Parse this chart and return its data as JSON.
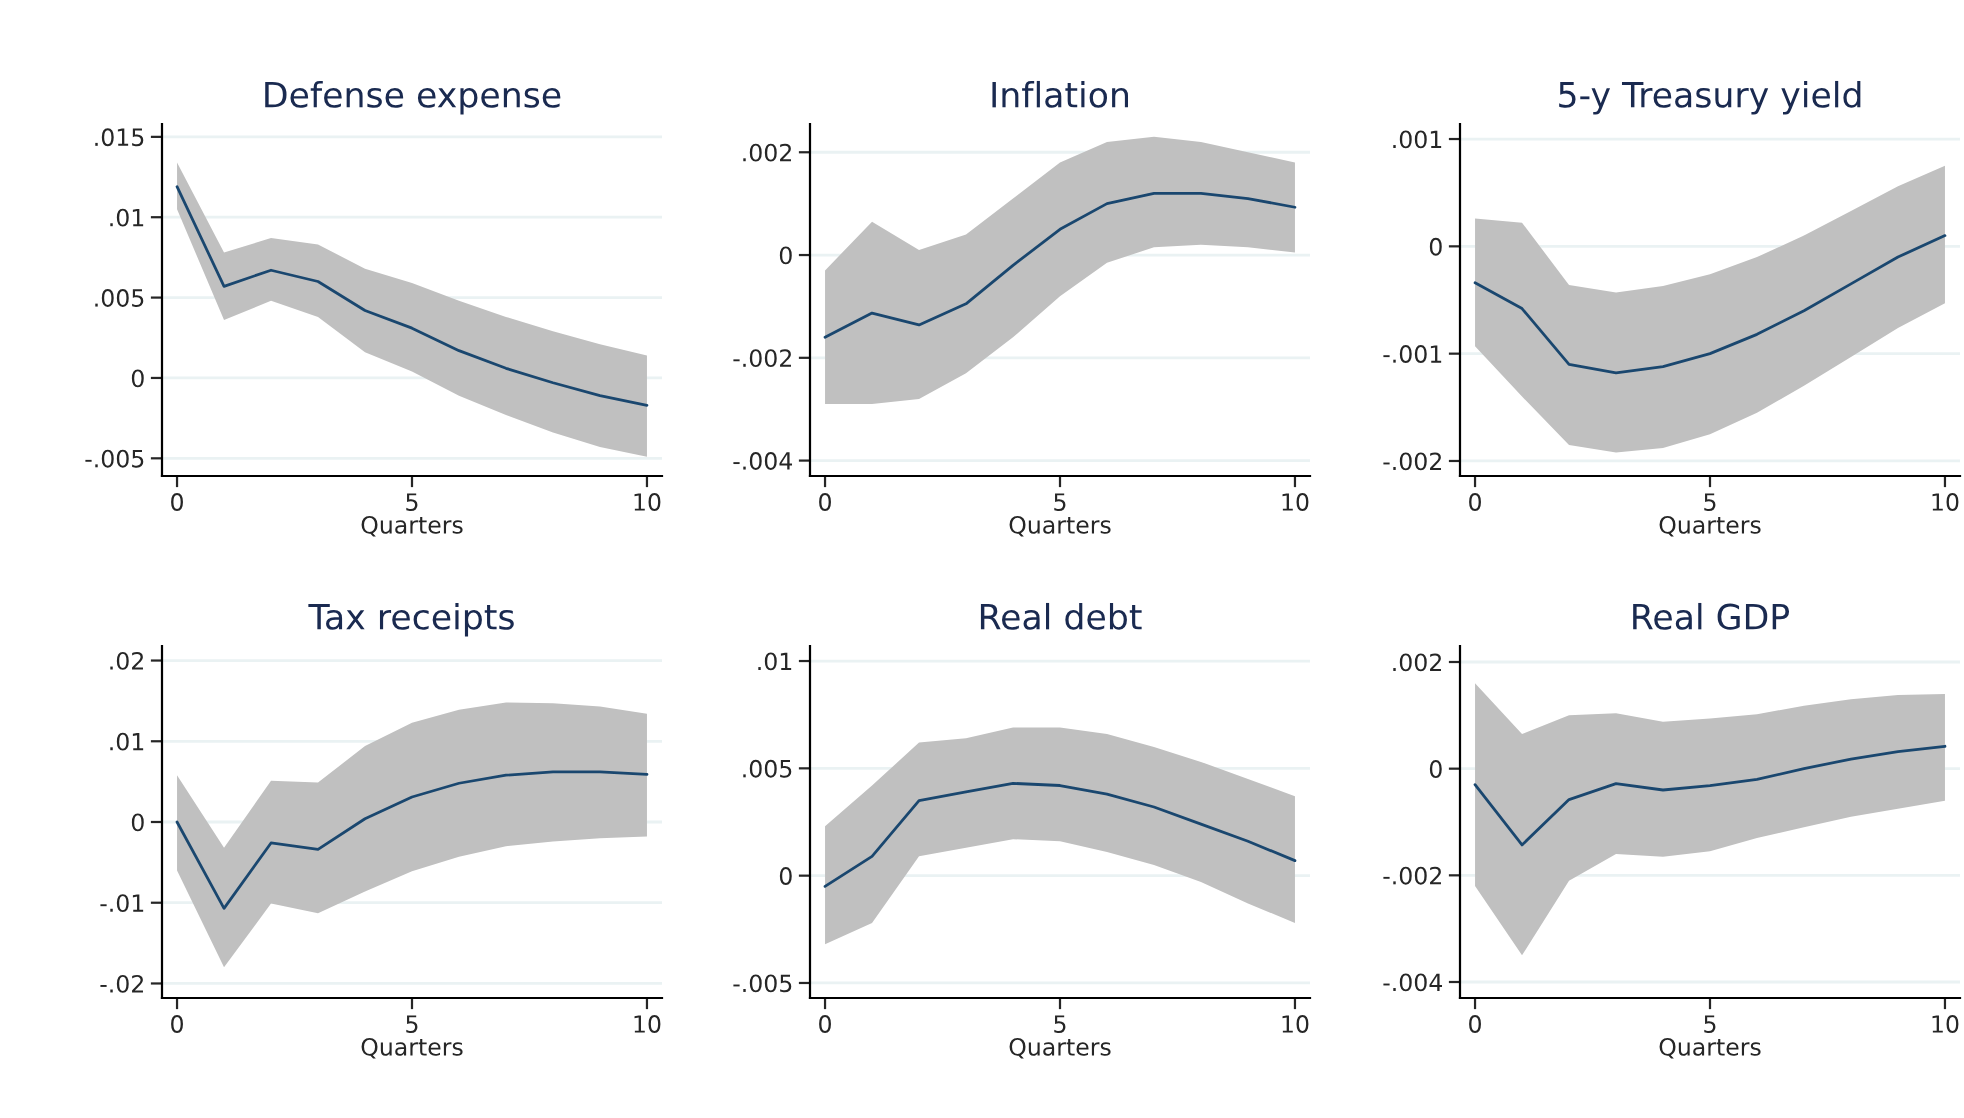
{
  "chart_data": [
    {
      "type": "line",
      "title": "Defense expense",
      "xlabel": "Quarters",
      "x": [
        0,
        1,
        2,
        3,
        4,
        5,
        6,
        7,
        8,
        9,
        10
      ],
      "xlim": [
        -0.32,
        10.32
      ],
      "xticks": [
        0,
        5,
        10
      ],
      "ylim": [
        -0.0061,
        0.0158
      ],
      "yticks": [
        {
          "value": -0.005,
          "label": "-.005"
        },
        0,
        {
          "value": 0.005,
          "label": ".005"
        },
        {
          "value": 0.01,
          "label": ".01"
        },
        {
          "value": 0.015,
          "label": ".015"
        }
      ],
      "grid": "y",
      "series": [
        {
          "color": "#1a476f",
          "values": [
            0.0119,
            0.0057,
            0.0067,
            0.006,
            0.0042,
            0.0031,
            0.0017,
            0.0006,
            -0.0003,
            -0.0011,
            -0.0017
          ],
          "lower": [
            0.0105,
            0.0036,
            0.0048,
            0.0038,
            0.0016,
            0.0004,
            -0.0011,
            -0.0023,
            -0.0034,
            -0.0043,
            -0.0049
          ],
          "upper": [
            0.0134,
            0.0078,
            0.0087,
            0.0083,
            0.0068,
            0.0059,
            0.0048,
            0.0038,
            0.0029,
            0.0021,
            0.0014
          ]
        }
      ]
    },
    {
      "type": "line",
      "title": "Inflation",
      "xlabel": "Quarters",
      "x": [
        0,
        1,
        2,
        3,
        4,
        5,
        6,
        7,
        8,
        9,
        10
      ],
      "xlim": [
        -0.32,
        10.32
      ],
      "xticks": [
        0,
        5,
        10
      ],
      "ylim": [
        -0.0043,
        0.00255
      ],
      "yticks": [
        {
          "value": -0.004,
          "label": "-.004"
        },
        {
          "value": -0.002,
          "label": "-.002"
        },
        0,
        {
          "value": 0.002,
          "label": ".002"
        }
      ],
      "grid": "y",
      "series": [
        {
          "color": "#1a476f",
          "values": [
            -0.0016,
            -0.00113,
            -0.00136,
            -0.00095,
            -0.0002,
            0.0005,
            0.001,
            0.0012,
            0.0012,
            0.0011,
            0.00093
          ],
          "lower": [
            -0.0029,
            -0.0029,
            -0.0028,
            -0.0023,
            -0.0016,
            -0.0008,
            -0.00015,
            0.00015,
            0.0002,
            0.00015,
            5e-05
          ],
          "upper": [
            -0.0003,
            0.00065,
            0.0001,
            0.0004,
            0.0011,
            0.0018,
            0.0022,
            0.0023,
            0.0022,
            0.002,
            0.0018
          ]
        }
      ]
    },
    {
      "type": "line",
      "title": "5-y Treasury yield",
      "xlabel": "Quarters",
      "x": [
        0,
        1,
        2,
        3,
        4,
        5,
        6,
        7,
        8,
        9,
        10
      ],
      "xlim": [
        -0.32,
        10.32
      ],
      "xticks": [
        0,
        5,
        10
      ],
      "ylim": [
        -0.00214,
        0.00114
      ],
      "yticks": [
        {
          "value": -0.002,
          "label": "-.002"
        },
        {
          "value": -0.001,
          "label": "-.001"
        },
        0,
        {
          "value": 0.001,
          "label": ".001"
        }
      ],
      "grid": "y",
      "series": [
        {
          "color": "#1a476f",
          "values": [
            -0.00034,
            -0.00058,
            -0.0011,
            -0.00118,
            -0.00112,
            -0.001,
            -0.00082,
            -0.0006,
            -0.00035,
            -0.0001,
            0.0001
          ],
          "lower": [
            -0.00093,
            -0.0014,
            -0.00185,
            -0.00192,
            -0.00188,
            -0.00175,
            -0.00155,
            -0.0013,
            -0.00103,
            -0.00076,
            -0.00053
          ],
          "upper": [
            0.00026,
            0.00022,
            -0.00036,
            -0.00043,
            -0.00037,
            -0.00026,
            -0.0001,
            0.0001,
            0.00033,
            0.00056,
            0.00075
          ]
        }
      ]
    },
    {
      "type": "line",
      "title": "Tax receipts",
      "xlabel": "Quarters",
      "x": [
        0,
        1,
        2,
        3,
        4,
        5,
        6,
        7,
        8,
        9,
        10
      ],
      "xlim": [
        -0.32,
        10.32
      ],
      "xticks": [
        0,
        5,
        10
      ],
      "ylim": [
        -0.0218,
        0.0218
      ],
      "yticks": [
        {
          "value": -0.02,
          "label": "-.02"
        },
        {
          "value": -0.01,
          "label": "-.01"
        },
        0,
        {
          "value": 0.01,
          "label": ".01"
        },
        {
          "value": 0.02,
          "label": ".02"
        }
      ],
      "grid": "y",
      "series": [
        {
          "color": "#1a476f",
          "values": [
            0,
            -0.0107,
            -0.0026,
            -0.0034,
            0.0004,
            0.0031,
            0.0048,
            0.0058,
            0.0062,
            0.0062,
            0.0059
          ],
          "lower": [
            -0.006,
            -0.018,
            -0.0101,
            -0.0113,
            -0.0086,
            -0.0061,
            -0.0043,
            -0.003,
            -0.0024,
            -0.002,
            -0.0018
          ],
          "upper": [
            0.0058,
            -0.0032,
            0.0051,
            0.0049,
            0.0094,
            0.0123,
            0.0139,
            0.0148,
            0.0147,
            0.0143,
            0.0134
          ]
        }
      ]
    },
    {
      "type": "line",
      "title": "Real debt",
      "xlabel": "Quarters",
      "x": [
        0,
        1,
        2,
        3,
        4,
        5,
        6,
        7,
        8,
        9,
        10
      ],
      "xlim": [
        -0.32,
        10.32
      ],
      "xticks": [
        0,
        5,
        10
      ],
      "ylim": [
        -0.0057,
        0.0107
      ],
      "yticks": [
        {
          "value": -0.005,
          "label": "-.005"
        },
        0,
        {
          "value": 0.005,
          "label": ".005"
        },
        {
          "value": 0.01,
          "label": ".01"
        }
      ],
      "grid": "y",
      "series": [
        {
          "color": "#1a476f",
          "values": [
            -0.0005,
            0.0009,
            0.0035,
            0.0039,
            0.0043,
            0.0042,
            0.0038,
            0.0032,
            0.0024,
            0.0016,
            0.0007
          ],
          "lower": [
            -0.0032,
            -0.0022,
            0.0009,
            0.0013,
            0.0017,
            0.0016,
            0.0011,
            0.0005,
            -0.0003,
            -0.0013,
            -0.0022
          ],
          "upper": [
            0.0023,
            0.0042,
            0.0062,
            0.0064,
            0.0069,
            0.0069,
            0.0066,
            0.006,
            0.0053,
            0.0045,
            0.0037
          ]
        }
      ]
    },
    {
      "type": "line",
      "title": "Real GDP",
      "xlabel": "Quarters",
      "x": [
        0,
        1,
        2,
        3,
        4,
        5,
        6,
        7,
        8,
        9,
        10
      ],
      "xlim": [
        -0.32,
        10.32
      ],
      "xticks": [
        0,
        5,
        10
      ],
      "ylim": [
        -0.0043,
        0.0023
      ],
      "yticks": [
        {
          "value": -0.004,
          "label": "-.004"
        },
        {
          "value": -0.002,
          "label": "-.002"
        },
        0,
        {
          "value": 0.002,
          "label": ".002"
        }
      ],
      "grid": "y",
      "series": [
        {
          "color": "#1a476f",
          "values": [
            -0.0003,
            -0.00143,
            -0.00058,
            -0.00028,
            -0.0004,
            -0.00032,
            -0.0002,
            0,
            0.00018,
            0.00032,
            0.00042
          ],
          "lower": [
            -0.0022,
            -0.0035,
            -0.0021,
            -0.0016,
            -0.00165,
            -0.00155,
            -0.0013,
            -0.0011,
            -0.0009,
            -0.00075,
            -0.0006
          ],
          "upper": [
            0.0016,
            0.00065,
            0.001,
            0.00104,
            0.00088,
            0.00094,
            0.00102,
            0.00118,
            0.0013,
            0.00138,
            0.0014
          ]
        }
      ]
    }
  ]
}
